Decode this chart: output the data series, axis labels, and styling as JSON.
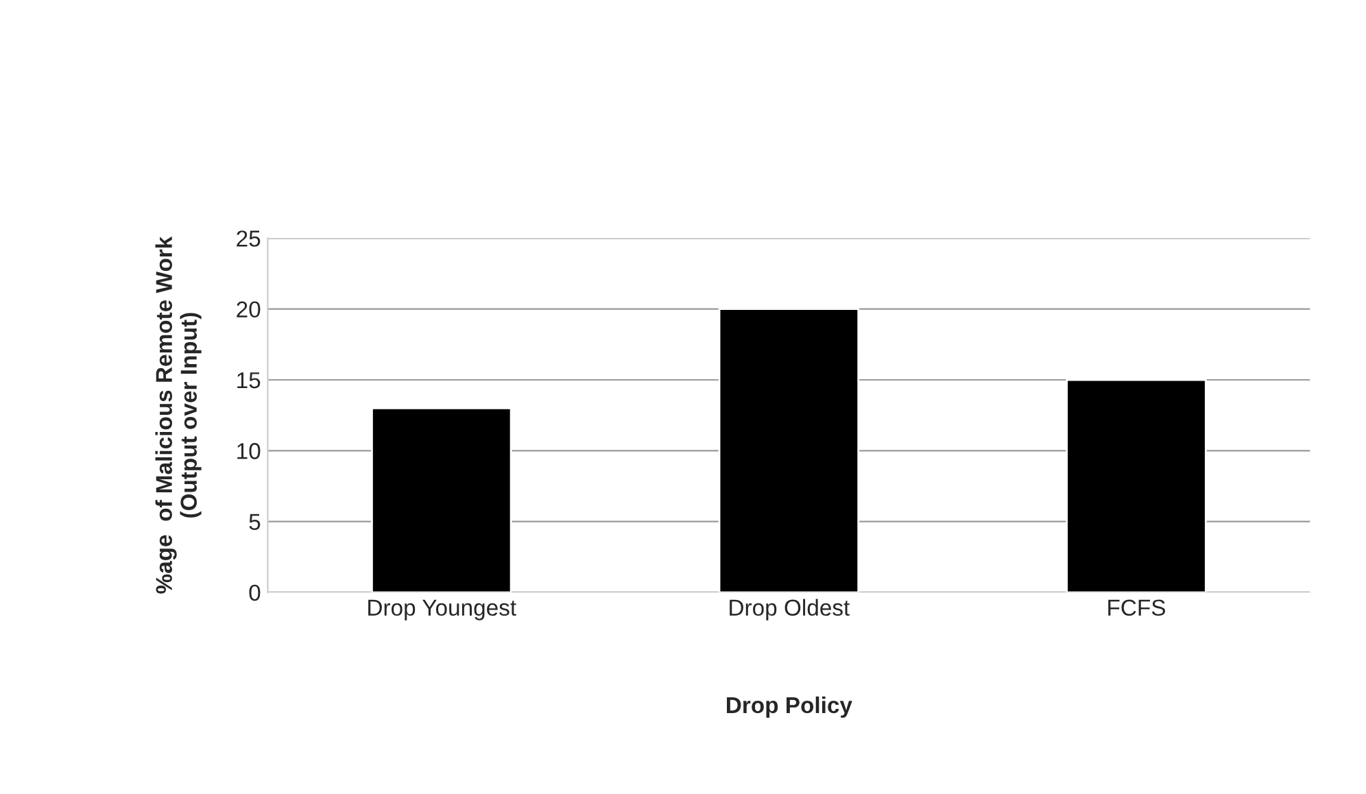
{
  "chart_data": {
    "type": "bar",
    "xlabel": "Drop Policy",
    "ylabel": "%age  of Malicious Remote Work\n(Output over Input)",
    "categories": [
      "Drop Youngest",
      "Drop Oldest",
      "FCFS"
    ],
    "values": [
      13,
      20,
      15
    ],
    "color": "#000000",
    "ylim": [
      0,
      25
    ],
    "yticks": [
      0,
      5,
      10,
      15,
      20,
      25
    ],
    "grid": "y"
  }
}
